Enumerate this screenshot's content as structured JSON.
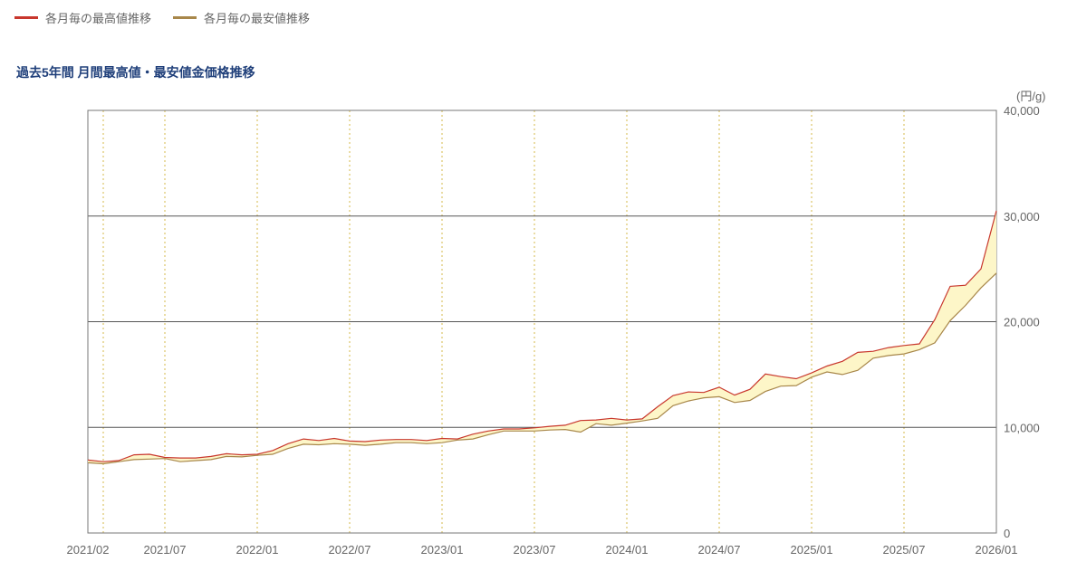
{
  "legend": {
    "high_label": "各月毎の最高値推移",
    "low_label": "各月毎の最安値推移"
  },
  "colors": {
    "high_line": "#c8372d",
    "low_line": "#a8874a",
    "fill": "#fdf6c8",
    "grid": "#555555",
    "vgrid": "#d4b84a"
  },
  "chart_data": {
    "type": "line",
    "title": "過去5年間 月間最高値・最安値金価格推移",
    "unit": "(円/g)",
    "ylim": [
      0,
      40000
    ],
    "y_ticks": [
      "0",
      "10,000",
      "20,000",
      "30,000",
      "40,000"
    ],
    "x_tick_labels": [
      "2021/02",
      "2021/07",
      "2022/01",
      "2022/07",
      "2023/01",
      "2023/07",
      "2024/01",
      "2024/07",
      "2025/01",
      "2025/07",
      "2026/01"
    ],
    "x_months": [
      "2021/02",
      "2021/03",
      "2021/04",
      "2021/05",
      "2021/06",
      "2021/07",
      "2021/08",
      "2021/09",
      "2021/10",
      "2021/11",
      "2021/12",
      "2022/01",
      "2022/02",
      "2022/03",
      "2022/04",
      "2022/05",
      "2022/06",
      "2022/07",
      "2022/08",
      "2022/09",
      "2022/10",
      "2022/11",
      "2022/12",
      "2023/01",
      "2023/02",
      "2023/03",
      "2023/04",
      "2023/05",
      "2023/06",
      "2023/07",
      "2023/08",
      "2023/09",
      "2023/10",
      "2023/11",
      "2023/12",
      "2024/01",
      "2024/02",
      "2024/03",
      "2024/04",
      "2024/05",
      "2024/06",
      "2024/07",
      "2024/08",
      "2024/09",
      "2024/10",
      "2024/11",
      "2024/12",
      "2025/01",
      "2025/02",
      "2025/03",
      "2025/04",
      "2025/05",
      "2025/06",
      "2025/07",
      "2025/08",
      "2025/09",
      "2025/10",
      "2025/11",
      "2025/12",
      "2026/01"
    ],
    "series": [
      {
        "name": "各月毎の最高値推移",
        "values": [
          6900,
          6750,
          6850,
          7400,
          7450,
          7150,
          7100,
          7100,
          7250,
          7500,
          7400,
          7450,
          7800,
          8450,
          8900,
          8750,
          8950,
          8700,
          8650,
          8800,
          8850,
          8850,
          8750,
          8950,
          8900,
          9350,
          9650,
          9850,
          9850,
          9950,
          10100,
          10200,
          10650,
          10700,
          10850,
          10700,
          10800,
          11950,
          13000,
          13350,
          13300,
          13800,
          13050,
          13600,
          15050,
          14800,
          14600,
          15150,
          15800,
          16250,
          17100,
          17200,
          17550,
          17750,
          17900,
          20200,
          23350,
          23450,
          25000,
          30500
        ]
      },
      {
        "name": "各月毎の最安値推移",
        "values": [
          6650,
          6550,
          6750,
          6950,
          7000,
          7050,
          6750,
          6850,
          6950,
          7250,
          7200,
          7350,
          7450,
          8000,
          8400,
          8350,
          8450,
          8400,
          8300,
          8400,
          8550,
          8550,
          8450,
          8550,
          8800,
          8900,
          9300,
          9650,
          9650,
          9650,
          9750,
          9800,
          9550,
          10350,
          10200,
          10400,
          10600,
          10850,
          12050,
          12500,
          12800,
          12900,
          12350,
          12550,
          13400,
          13900,
          13950,
          14750,
          15250,
          15000,
          15400,
          16550,
          16800,
          16950,
          17350,
          18000,
          20100,
          21550,
          23200,
          24600
        ]
      }
    ]
  }
}
